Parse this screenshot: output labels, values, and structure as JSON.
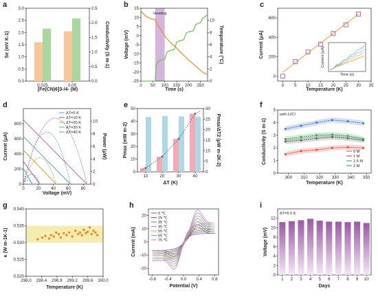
{
  "panel_labels": [
    "a",
    "b",
    "c",
    "d",
    "e",
    "f",
    "g",
    "h",
    "i"
  ],
  "chart_data": [
    {
      "panel": "a",
      "type": "bar",
      "categories": [
        "0.025",
        "0.05"
      ],
      "series": [
        {
          "values": [
            1.6,
            2.05
          ],
          "color": "#f9c59a"
        },
        {
          "values": [
            1.8,
            2.15
          ],
          "color": "#a8d8a0"
        }
      ],
      "xlabel": "[Fe(CN)6]3-/4- (M)",
      "ylabel": "Se (mV K-1)",
      "y2label": "Conductivity (S m-1)",
      "ylim": [
        0,
        3.0
      ],
      "y2lim": [
        0,
        2.5
      ],
      "yticks": [
        "0.0",
        "0.5",
        "1.0",
        "1.5",
        "2.0",
        "2.5",
        "3.0"
      ],
      "y2ticks": [
        "0.0",
        "0.5",
        "1.0",
        "1.5",
        "2.0",
        "2.5"
      ]
    },
    {
      "panel": "b",
      "type": "line",
      "xlabel": "Time (s)",
      "ylabel": "Voltage (mV)",
      "y2label": "Temperature (°C)",
      "annotation": "Heating",
      "xlim": [
        0,
        280
      ],
      "ylim": [
        -25,
        15
      ],
      "y2lim": [
        0,
        12
      ],
      "xticks": [
        "0",
        "50",
        "100",
        "150",
        "200",
        "250"
      ],
      "yticks": [
        "-25",
        "-20",
        "-15",
        "-10",
        "-5",
        "0",
        "5",
        "10",
        "15"
      ],
      "y2ticks": [
        "0",
        "2",
        "4",
        "6",
        "8",
        "10"
      ],
      "shade": [
        60,
        100
      ],
      "series": [
        {
          "name": "voltage",
          "color": "#f08a24",
          "x": [
            0,
            10,
            20,
            30,
            40,
            50,
            60,
            62,
            70,
            80,
            90,
            100,
            110,
            120,
            130,
            140,
            150,
            160,
            170,
            180,
            190,
            200,
            210,
            220,
            230,
            240,
            250,
            260,
            270,
            280
          ],
          "y": [
            13.5,
            12,
            10.8,
            9.9,
            9.3,
            9,
            8.8,
            8,
            6.2,
            4,
            1.8,
            -0.2,
            -1.8,
            -3.3,
            -4.5,
            -5.6,
            -6.8,
            -8.3,
            -9.6,
            -10.8,
            -12.1,
            -13.4,
            -14.5,
            -15.6,
            -16.8,
            -17.9,
            -19,
            -20.2,
            -20.8,
            -21.2
          ]
        },
        {
          "name": "temperature",
          "color": "#6cc04a",
          "x": [
            0,
            60,
            62,
            65,
            70,
            80,
            90,
            100,
            110,
            120,
            130,
            140,
            150,
            160,
            170,
            180,
            190,
            200,
            210,
            220,
            230,
            240,
            250,
            260,
            270,
            280
          ],
          "y": [
            0,
            0,
            1.2,
            2.6,
            3.1,
            3.4,
            3.5,
            3.6,
            4.8,
            5,
            5.1,
            5.2,
            6.4,
            6.6,
            6.7,
            6.8,
            7.9,
            8.1,
            8.2,
            8.3,
            9.3,
            9.5,
            9.6,
            10.4,
            10.6,
            11
          ]
        }
      ]
    },
    {
      "panel": "c",
      "type": "scatter",
      "xlabel": "Temperature (K)",
      "ylabel": "Current (μA)",
      "xlim": [
        -2,
        35
      ],
      "ylim": [
        -50,
        700
      ],
      "xticks": [
        "0",
        "5",
        "10",
        "15",
        "20",
        "25",
        "30",
        "35"
      ],
      "yticks": [
        "0",
        "200",
        "400",
        "600"
      ],
      "x": [
        0,
        5,
        10,
        15,
        20,
        25,
        30
      ],
      "y": [
        0,
        150,
        250,
        330,
        440,
        530,
        640
      ],
      "fit": [
        [
          0,
          40
        ],
        [
          30,
          640
        ]
      ],
      "inset": {
        "xlabel": "Time (s)",
        "ylabel": "Current (μA)",
        "xticks": [
          "0",
          "250"
        ],
        "yticks": [
          "0",
          "200",
          "400"
        ]
      }
    },
    {
      "panel": "d",
      "type": "line",
      "xlabel": "Voltage (mV)",
      "ylabel": "Current (μA)",
      "y2label": "Power (μW)",
      "xlim": [
        0,
        90
      ],
      "ylim": [
        0,
        1000
      ],
      "y2lim": [
        0,
        12
      ],
      "xticks": [
        "0",
        "20",
        "40",
        "60",
        "80"
      ],
      "yticks": [
        "0",
        "200",
        "400",
        "600",
        "800"
      ],
      "y2ticks": [
        "0",
        "2",
        "4",
        "6",
        "8",
        "10"
      ],
      "series": [
        {
          "name": "ΔT=5 K",
          "color": "#3cb7c7",
          "voc": 12,
          "isc": 210,
          "pmax": 0.6
        },
        {
          "name": "ΔT=10 K",
          "color": "#9955c9",
          "voc": 22,
          "isc": 300,
          "pmax": 1.6
        },
        {
          "name": "ΔT=20 K",
          "color": "#c4a52e",
          "voc": 44,
          "isc": 450,
          "pmax": 4.2
        },
        {
          "name": "ΔT=30 K",
          "color": "#4aa3d9",
          "voc": 63,
          "isc": 630,
          "pmax": 8.3
        },
        {
          "name": "ΔT=40 K",
          "color": "#b36fae",
          "voc": 85,
          "isc": 850,
          "pmax": 10.5
        }
      ]
    },
    {
      "panel": "e",
      "type": "bar",
      "xlabel": "ΔT (K)",
      "ylabel": "Pmax (mW m-2)",
      "y2label": "Pmax/ΔT2 (μW m-2K-2)",
      "categories": [
        "10",
        "20",
        "30",
        "40"
      ],
      "ylim": [
        0,
        50
      ],
      "y2lim": [
        0,
        30
      ],
      "yticks": [
        "0",
        "10",
        "20",
        "30",
        "40",
        "50"
      ],
      "y2ticks": [
        "0",
        "5",
        "10",
        "15",
        "20",
        "25",
        "30"
      ],
      "series": [
        {
          "name": "Pmax",
          "values": [
            3,
            12,
            26,
            46
          ],
          "color": "#f5a8b8"
        },
        {
          "name": "Pmax/ΔT2",
          "values": [
            26,
            26.5,
            26.3,
            26.2
          ],
          "color": "#add8e6"
        }
      ],
      "dashed": {
        "x": [
          7,
          10,
          20,
          30,
          40,
          43
        ],
        "y": [
          1,
          3,
          12,
          26,
          46,
          48
        ]
      }
    },
    {
      "panel": "f",
      "type": "line",
      "xlabel": "Temperature (K)",
      "ylabel": "Conductivity (S m-1)",
      "annotation": "with Li/Cl",
      "xlim": [
        293,
        353
      ],
      "ylim": [
        0,
        5
      ],
      "xticks": [
        "300",
        "310",
        "320",
        "330",
        "340",
        "350"
      ],
      "yticks": [
        "0",
        "1",
        "2",
        "3",
        "4",
        "5"
      ],
      "x": [
        298,
        308,
        318,
        328,
        338,
        348
      ],
      "series": [
        {
          "name": "0 M",
          "color": "#e0443c",
          "values": [
            1.5,
            1.75,
            1.85,
            2.0,
            2.05,
            2.0
          ]
        },
        {
          "name": "1 M",
          "color": "#5a5a5a",
          "values": [
            2.5,
            2.6,
            2.75,
            2.85,
            2.75,
            2.6
          ]
        },
        {
          "name": "1.5 M",
          "color": "#2fa04a",
          "values": [
            2.7,
            2.85,
            3.0,
            3.05,
            2.95,
            2.7
          ]
        },
        {
          "name": "2 M",
          "color": "#3a6fd0",
          "values": [
            3.5,
            3.75,
            4.0,
            4.2,
            4.1,
            3.95
          ]
        }
      ]
    },
    {
      "panel": "g",
      "type": "scatter",
      "xlabel": "Temperature (K)",
      "ylabel": "κ (W m-1K-1)",
      "xlim": [
        298.0,
        300.0
      ],
      "ylim": [
        0.52,
        0.54
      ],
      "xticks": [
        "298.0",
        "298.4",
        "298.8",
        "299.2",
        "299.6",
        "300.0"
      ],
      "yticks": [
        "0.520",
        "0.525",
        "0.530",
        "0.535",
        "0.540"
      ],
      "band": [
        0.53,
        0.535
      ],
      "x": [
        298.3,
        298.42,
        298.5,
        298.6,
        298.65,
        298.72,
        298.78,
        298.85,
        298.9,
        298.98,
        299.05,
        299.12,
        299.2,
        299.28,
        299.35,
        299.4,
        299.45,
        299.5,
        299.55,
        299.6,
        299.65,
        299.7,
        299.75,
        299.8,
        299.85
      ],
      "y": [
        0.531,
        0.5315,
        0.532,
        0.5312,
        0.5322,
        0.5318,
        0.533,
        0.5325,
        0.5315,
        0.5328,
        0.5322,
        0.533,
        0.5318,
        0.5335,
        0.5325,
        0.533,
        0.5322,
        0.5338,
        0.5328,
        0.5332,
        0.5345,
        0.5325,
        0.5335,
        0.533,
        0.5322
      ]
    },
    {
      "panel": "h",
      "type": "line",
      "xlabel": "Potential (V)",
      "ylabel": "Current (mA)",
      "xlim": [
        -0.9,
        0.9
      ],
      "ylim": [
        -25,
        25
      ],
      "xticks": [
        "-0.8",
        "-0.4",
        "0.0",
        "0.4",
        "0.8"
      ],
      "yticks": [
        "-20",
        "-10",
        "0",
        "10",
        "20"
      ],
      "series": [
        {
          "name": "0 ℃",
          "color": "#4a6fd8",
          "amp": 10
        },
        {
          "name": "25 ℃",
          "color": "#e0443c",
          "amp": 12
        },
        {
          "name": "35 ℃",
          "color": "#3aa860",
          "amp": 14
        },
        {
          "name": "45 ℃",
          "color": "#b07fd6",
          "amp": 16
        },
        {
          "name": "55 ℃",
          "color": "#e8a040",
          "amp": 18
        },
        {
          "name": "65 ℃",
          "color": "#57b8d8",
          "amp": 20
        },
        {
          "name": "75 ℃",
          "color": "#e27cc0",
          "amp": 22
        }
      ]
    },
    {
      "panel": "i",
      "type": "bar",
      "xlabel": "Days",
      "ylabel": "Voltage (mV)",
      "annotation": "ΔT=5.5 K",
      "categories": [
        "1",
        "2",
        "3",
        "4",
        "5",
        "6",
        "7",
        "8",
        "9",
        "10"
      ],
      "values": [
        11.2,
        11.4,
        11.6,
        11.9,
        11.5,
        11.3,
        11.3,
        11.2,
        11.3,
        11.0
      ],
      "ylim": [
        0,
        14
      ],
      "yticks": [
        "0",
        "2",
        "4",
        "6",
        "8",
        "10",
        "12"
      ],
      "color": "#9b59a6"
    }
  ]
}
